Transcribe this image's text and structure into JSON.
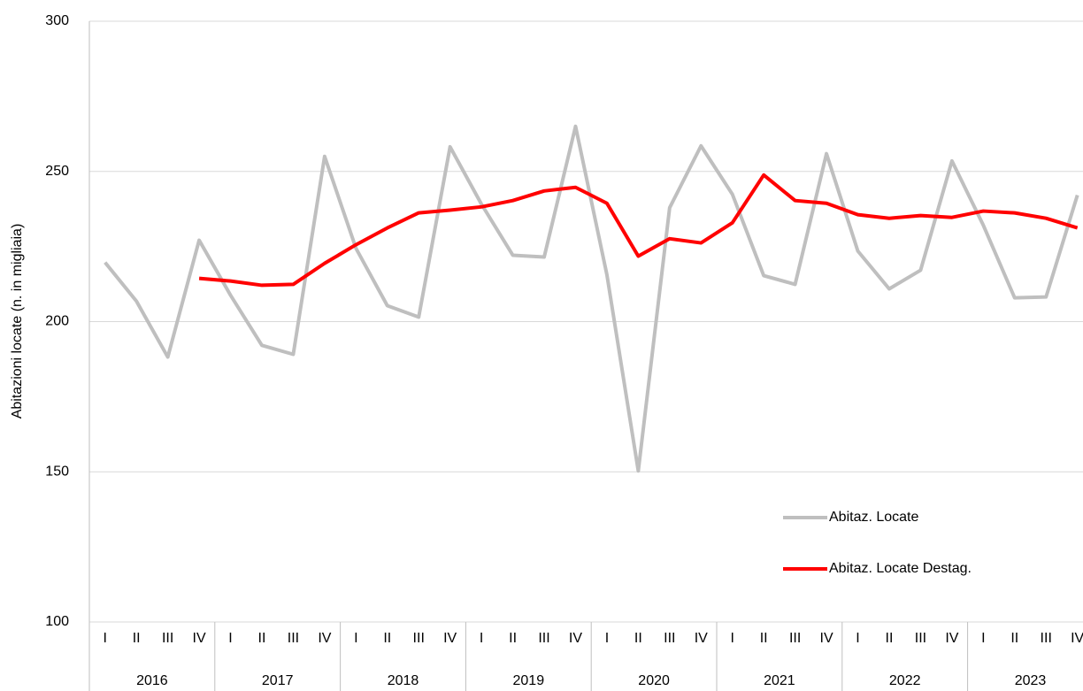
{
  "chart_data": {
    "type": "line",
    "y_label": "Abitazioni locate (n. in migliaia)",
    "categories": [
      "I",
      "II",
      "III",
      "IV",
      "I",
      "II",
      "III",
      "IV",
      "I",
      "II",
      "III",
      "IV",
      "I",
      "II",
      "III",
      "IV",
      "I",
      "II",
      "III",
      "IV",
      "I",
      "II",
      "III",
      "IV",
      "I",
      "II",
      "III",
      "IV",
      "I",
      "II",
      "III",
      "IV"
    ],
    "years": [
      "2016",
      "2017",
      "2018",
      "2019",
      "2020",
      "2021",
      "2022",
      "2023"
    ],
    "series": [
      {
        "name": "Abitaz. Locate",
        "color": "#bfbfbf",
        "values": [
          219.7,
          206.8,
          188.2,
          227.1,
          208.8,
          192.1,
          189.1,
          255.0,
          224.4,
          205.3,
          201.5,
          258.2,
          239.1,
          222.1,
          221.5,
          265.0,
          215.6,
          150.3,
          237.9,
          258.5,
          242.4,
          215.3,
          212.4,
          255.9,
          223.5,
          210.9,
          217.1,
          253.5,
          232.1,
          207.9,
          208.2,
          242.1
        ]
      },
      {
        "name": "Abitaz. Locate Destag.",
        "color": "#ff0000",
        "values": [
          null,
          null,
          null,
          214.4,
          213.5,
          212.1,
          212.4,
          219.4,
          225.6,
          231.2,
          236.2,
          237.1,
          238.2,
          240.3,
          243.5,
          244.7,
          239.4,
          221.8,
          227.6,
          226.2,
          232.9,
          248.8,
          240.3,
          239.4,
          235.6,
          234.4,
          235.3,
          234.7,
          236.8,
          236.2,
          234.4,
          231.2
        ]
      }
    ],
    "ylim": [
      100,
      300
    ],
    "yticks": [
      100,
      150,
      200,
      250,
      300
    ],
    "grid": true
  }
}
